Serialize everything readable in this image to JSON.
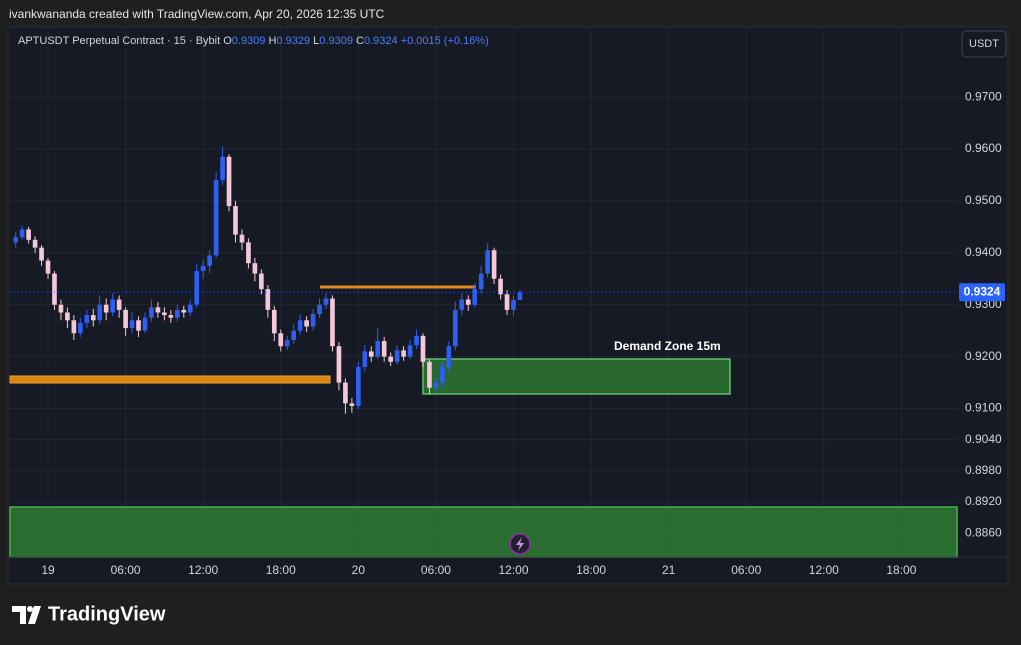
{
  "header": {
    "text": "ivankwananda created with TradingView.com, Apr 20, 2026 12:35 UTC"
  },
  "chart_data": {
    "type": "candlestick",
    "symbol": "APTUSDT Perpetual Contract · 15 · Bybit",
    "ohlc_legend": {
      "open_label": "O",
      "open": 0.9309,
      "high_label": "H",
      "high": 0.9329,
      "low_label": "L",
      "low": 0.9309,
      "close_label": "C",
      "close": 0.9324,
      "change": "+0.0015 (+0.16%)"
    },
    "currency": "USDT",
    "annotation": "Demand Zone 15m",
    "x": [
      -2.5,
      -2,
      -1.5,
      -1,
      -0.5,
      0,
      0.5,
      1,
      1.5,
      2,
      2.5,
      3,
      3.5,
      4,
      4.5,
      5,
      5.5,
      6,
      6.5,
      7,
      7.5,
      8,
      8.5,
      9,
      9.5,
      10,
      10.5,
      11,
      11.5,
      12,
      12.5,
      13,
      13.5,
      14,
      14.5,
      15,
      15.5,
      16,
      16.5,
      17,
      17.5,
      18,
      18.5,
      19,
      19.5,
      20,
      20.5,
      21,
      21.5,
      22,
      22.5,
      23,
      23.5,
      24,
      24.5,
      25,
      25.5,
      26,
      26.5,
      27,
      27.5,
      28,
      28.5,
      29,
      29.5,
      30,
      30.5,
      31,
      31.5,
      32,
      32.5,
      33,
      33.5,
      34,
      34.5,
      35,
      35.5,
      36,
      36.5
    ],
    "open": [
      0.942,
      0.943,
      0.9445,
      0.9425,
      0.941,
      0.9385,
      0.936,
      0.93,
      0.9285,
      0.927,
      0.9245,
      0.9265,
      0.928,
      0.927,
      0.93,
      0.9285,
      0.931,
      0.929,
      0.9255,
      0.927,
      0.925,
      0.9275,
      0.9295,
      0.9285,
      0.928,
      0.9275,
      0.929,
      0.9285,
      0.93,
      0.9365,
      0.9375,
      0.9395,
      0.954,
      0.9585,
      0.949,
      0.9435,
      0.942,
      0.938,
      0.936,
      0.933,
      0.929,
      0.9245,
      0.922,
      0.9232,
      0.925,
      0.927,
      0.9258,
      0.9282,
      0.93,
      0.9312,
      0.922,
      0.915,
      0.911,
      0.9105,
      0.918,
      0.921,
      0.92,
      0.923,
      0.92,
      0.919,
      0.9212,
      0.92,
      0.9222,
      0.924,
      0.919,
      0.914,
      0.915,
      0.918,
      0.922,
      0.929,
      0.931,
      0.93,
      0.933,
      0.936,
      0.9405,
      0.935,
      0.932,
      0.929,
      0.9309
    ],
    "high": [
      0.944,
      0.9452,
      0.945,
      0.9432,
      0.9415,
      0.939,
      0.9365,
      0.931,
      0.9295,
      0.928,
      0.9275,
      0.929,
      0.9292,
      0.9318,
      0.9312,
      0.9322,
      0.9318,
      0.9295,
      0.9285,
      0.9278,
      0.9285,
      0.931,
      0.9305,
      0.9295,
      0.929,
      0.93,
      0.9298,
      0.931,
      0.9378,
      0.9388,
      0.9405,
      0.9555,
      0.9605,
      0.959,
      0.95,
      0.9445,
      0.9428,
      0.939,
      0.9368,
      0.9338,
      0.9298,
      0.9252,
      0.924,
      0.9262,
      0.9282,
      0.9278,
      0.9292,
      0.9312,
      0.9322,
      0.9318,
      0.9228,
      0.9158,
      0.912,
      0.919,
      0.9222,
      0.922,
      0.9255,
      0.9238,
      0.9208,
      0.9222,
      0.922,
      0.9232,
      0.9252,
      0.9245,
      0.9195,
      0.916,
      0.919,
      0.923,
      0.9305,
      0.9322,
      0.9318,
      0.9342,
      0.9375,
      0.9418,
      0.941,
      0.9358,
      0.9328,
      0.9318,
      0.9329
    ],
    "low": [
      0.941,
      0.9425,
      0.9418,
      0.94,
      0.9375,
      0.935,
      0.929,
      0.927,
      0.9255,
      0.9232,
      0.9238,
      0.9255,
      0.9258,
      0.9262,
      0.927,
      0.9278,
      0.9275,
      0.924,
      0.9245,
      0.9238,
      0.9245,
      0.9268,
      0.9275,
      0.927,
      0.9265,
      0.9268,
      0.9275,
      0.9278,
      0.9295,
      0.935,
      0.936,
      0.939,
      0.953,
      0.948,
      0.942,
      0.9405,
      0.937,
      0.9345,
      0.932,
      0.9275,
      0.923,
      0.921,
      0.9212,
      0.9225,
      0.9242,
      0.9248,
      0.925,
      0.9275,
      0.9292,
      0.921,
      0.9135,
      0.909,
      0.9092,
      0.91,
      0.9172,
      0.919,
      0.9195,
      0.919,
      0.9182,
      0.9185,
      0.9192,
      0.9195,
      0.9215,
      0.918,
      0.9128,
      0.913,
      0.9142,
      0.9172,
      0.9212,
      0.928,
      0.9288,
      0.9295,
      0.9322,
      0.9352,
      0.934,
      0.931,
      0.928,
      0.928,
      0.9309
    ],
    "close": [
      0.943,
      0.9445,
      0.9425,
      0.941,
      0.9385,
      0.936,
      0.93,
      0.9285,
      0.927,
      0.9245,
      0.9265,
      0.928,
      0.927,
      0.93,
      0.9285,
      0.931,
      0.929,
      0.9255,
      0.927,
      0.925,
      0.9275,
      0.9295,
      0.9285,
      0.928,
      0.9275,
      0.929,
      0.9285,
      0.93,
      0.9365,
      0.9375,
      0.9395,
      0.954,
      0.9585,
      0.949,
      0.9435,
      0.942,
      0.938,
      0.936,
      0.933,
      0.929,
      0.9245,
      0.922,
      0.9232,
      0.925,
      0.927,
      0.9258,
      0.9282,
      0.93,
      0.9312,
      0.922,
      0.915,
      0.911,
      0.9105,
      0.918,
      0.921,
      0.92,
      0.923,
      0.92,
      0.919,
      0.9212,
      0.92,
      0.9222,
      0.924,
      0.919,
      0.914,
      0.915,
      0.918,
      0.922,
      0.929,
      0.931,
      0.93,
      0.933,
      0.936,
      0.9405,
      0.935,
      0.932,
      0.929,
      0.9309,
      0.9324
    ],
    "up_color": "#2e5ff2",
    "down_color": "#f5c8d8",
    "last_price": 0.9324,
    "xlim": [
      -2.94,
      70.3
    ],
    "xticks": [
      {
        "value": 0,
        "label": "19"
      },
      {
        "value": 6,
        "label": "06:00"
      },
      {
        "value": 12,
        "label": "12:00"
      },
      {
        "value": 18,
        "label": "18:00"
      },
      {
        "value": 24,
        "label": "20"
      },
      {
        "value": 30,
        "label": "06:00"
      },
      {
        "value": 36,
        "label": "12:00"
      },
      {
        "value": 42,
        "label": "18:00"
      },
      {
        "value": 48,
        "label": "21"
      },
      {
        "value": 54,
        "label": "06:00"
      },
      {
        "value": 60,
        "label": "12:00"
      },
      {
        "value": 66,
        "label": "18:00"
      }
    ],
    "ylim": [
      0.8814,
      0.9835
    ],
    "yticks": [
      {
        "value": 0.97,
        "label": "0.9700"
      },
      {
        "value": 0.96,
        "label": "0.9600"
      },
      {
        "value": 0.95,
        "label": "0.9500"
      },
      {
        "value": 0.94,
        "label": "0.9400"
      },
      {
        "value": 0.93,
        "label": "0.9300"
      },
      {
        "value": 0.92,
        "label": "0.9200"
      },
      {
        "value": 0.91,
        "label": "0.9100"
      },
      {
        "value": 0.904,
        "label": "0.9040"
      },
      {
        "value": 0.898,
        "label": "0.8980"
      },
      {
        "value": 0.892,
        "label": "0.8920"
      },
      {
        "value": 0.886,
        "label": "0.8860"
      }
    ],
    "grid": true
  },
  "footer": {
    "brand": "TradingView"
  }
}
